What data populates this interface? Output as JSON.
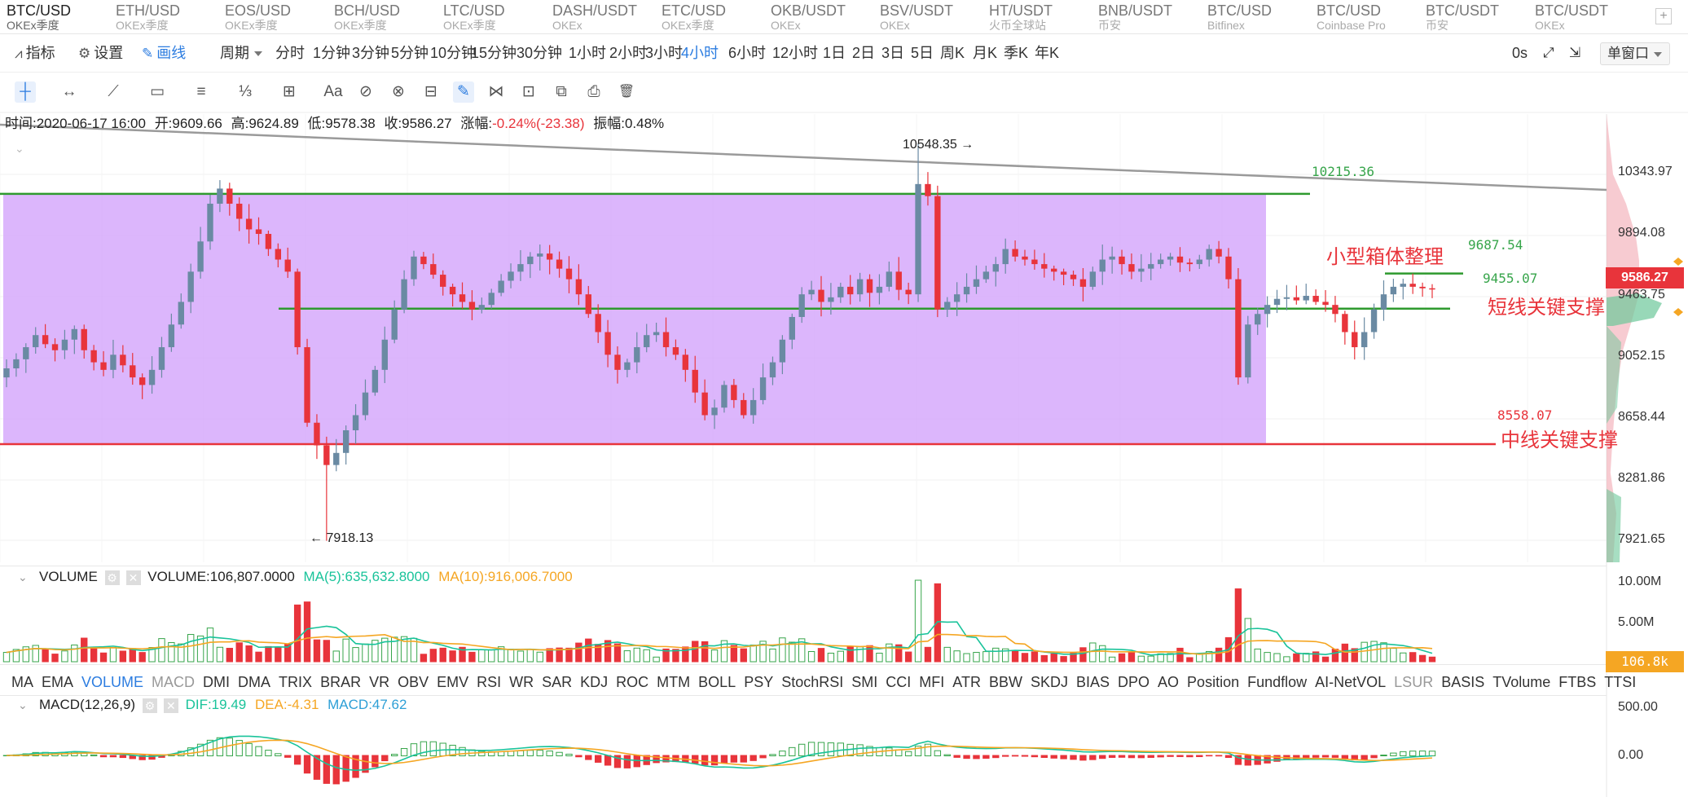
{
  "markets": [
    {
      "symbol": "BTC/USD",
      "exchange": "OKEx季度",
      "active": true
    },
    {
      "symbol": "ETH/USD",
      "exchange": "OKEx季度"
    },
    {
      "symbol": "EOS/USD",
      "exchange": "OKEx季度"
    },
    {
      "symbol": "BCH/USD",
      "exchange": "OKEx季度"
    },
    {
      "symbol": "LTC/USD",
      "exchange": "OKEx季度"
    },
    {
      "symbol": "DASH/USDT",
      "exchange": "OKEx"
    },
    {
      "symbol": "ETC/USD",
      "exchange": "OKEx季度"
    },
    {
      "symbol": "OKB/USDT",
      "exchange": "OKEx"
    },
    {
      "symbol": "BSV/USDT",
      "exchange": "OKEx"
    },
    {
      "symbol": "HT/USDT",
      "exchange": "火币全球站"
    },
    {
      "symbol": "BNB/USDT",
      "exchange": "币安"
    },
    {
      "symbol": "BTC/USD",
      "exchange": "Bitfinex"
    },
    {
      "symbol": "BTC/USD",
      "exchange": "Coinbase Pro"
    },
    {
      "symbol": "BTC/USDT",
      "exchange": "币安"
    },
    {
      "symbol": "BTC/USDT",
      "exchange": "OKEx"
    }
  ],
  "add_tab": "+",
  "toolbar": {
    "indicators": "指标",
    "settings": "设置",
    "drawing": "画线",
    "period": "周期",
    "intervals": [
      "分时",
      "1分钟",
      "3分钟",
      "5分钟",
      "10分钟",
      "15分钟",
      "30分钟",
      "1小时",
      "2小时",
      "3小时",
      "4小时",
      "6小时",
      "12小时",
      "1日",
      "2日",
      "3日",
      "5日",
      "周K",
      "月K",
      "季K",
      "年K"
    ],
    "active_interval": "4小时",
    "countdown": "0s",
    "window_mode": "单窗口"
  },
  "drawing_tools": [
    "crosshair-icon",
    "horizontal-ray-icon",
    "trend-line-icon",
    "rectangle-icon",
    "parallel-channel-icon",
    "fibonacci-icon",
    "measure-icon",
    "text-icon",
    "brush-icon",
    "magnet-icon",
    "ruler-icon",
    "pen-icon",
    "pattern-icon",
    "lock-icon",
    "copy-icon",
    "screenshot-icon",
    "trash-icon"
  ],
  "drawing_tool_glyphs": [
    "┼",
    "↔",
    "⟋",
    "▭",
    "≡",
    "⅓",
    "⊞",
    "Aa",
    "⊘",
    "⊗",
    "⊟",
    "✎",
    "⋈",
    "⊡",
    "⧉",
    "⎙",
    "🗑"
  ],
  "info": {
    "time": "时间:2020-06-17 16:00",
    "open": "开:9609.66",
    "high": "高:9624.89",
    "low": "低:9578.38",
    "close": "收:9586.27",
    "change_label": "涨幅:",
    "change_value": "-0.24%(-23.38)",
    "amplitude": "振幅:0.48%"
  },
  "annotations": {
    "high_mark": "10548.35 →",
    "low_mark": "← 7918.13",
    "level_10215": "10215.36",
    "level_9687": "9687.54",
    "level_9455": "9455.07",
    "level_8558": "8558.07",
    "small_box": "小型箱体整理",
    "short_support": "短线关键支撑",
    "mid_support": "中线关键支撑"
  },
  "price_axis": [
    "10343.97",
    "9894.08",
    "9463.75",
    "9052.15",
    "8658.44",
    "8281.86",
    "7921.65"
  ],
  "last_price": "9586.27",
  "volume": {
    "title": "VOLUME",
    "value": "VOLUME:106,807.0000",
    "ma5": "MA(5):635,632.8000",
    "ma10": "MA(10):916,006.7000",
    "axis": [
      "10.00M",
      "5.00M"
    ],
    "last": "106.8k"
  },
  "indicator_list": [
    "MA",
    "EMA",
    "VOLUME",
    "MACD",
    "DMI",
    "DMA",
    "TRIX",
    "BRAR",
    "VR",
    "OBV",
    "EMV",
    "RSI",
    "WR",
    "SAR",
    "KDJ",
    "ROC",
    "MTM",
    "BOLL",
    "PSY",
    "StochRSI",
    "SMI",
    "CCI",
    "MFI",
    "ATR",
    "BBW",
    "SKDJ",
    "BIAS",
    "DPO",
    "AO",
    "Position",
    "Fundflow",
    "AI-NetVOL",
    "LSUR",
    "BASIS",
    "TVolume",
    "FTBS",
    "TTSI"
  ],
  "macd": {
    "title": "MACD(12,26,9)",
    "dif": "DIF:19.49",
    "dea": "DEA:-4.31",
    "macd": "MACD:47.62",
    "axis": [
      "500.00",
      "0.00"
    ]
  },
  "colors": {
    "up": "#37a54b",
    "down": "#e8343b",
    "box_fill": "#d4a6fb",
    "accent": "#2d7de0",
    "ma5": "#19c39a",
    "ma10": "#f5a623"
  },
  "chart_data": {
    "type": "candlestick",
    "interval": "4小时",
    "last": {
      "time": "2020-06-17 16:00",
      "open": 9609.66,
      "high": 9624.89,
      "low": 9578.38,
      "close": 9586.27
    },
    "series_close": [
      9060,
      9120,
      9200,
      9280,
      9220,
      9180,
      9250,
      9320,
      9180,
      9100,
      9050,
      9150,
      9080,
      9000,
      8950,
      9050,
      9200,
      9350,
      9500,
      9700,
      9900,
      10150,
      10250,
      10150,
      10050,
      9980,
      9950,
      9850,
      9780,
      9700,
      9200,
      8700,
      8550,
      8420,
      8500,
      8650,
      8750,
      8900,
      9050,
      9250,
      9450,
      9650,
      9800,
      9750,
      9680,
      9600,
      9550,
      9500,
      9450,
      9480,
      9560,
      9640,
      9700,
      9750,
      9800,
      9820,
      9780,
      9720,
      9650,
      9550,
      9420,
      9300,
      9150,
      9050,
      9100,
      9200,
      9280,
      9300,
      9200,
      9150,
      9050,
      8900,
      8750,
      8800,
      8950,
      8850,
      8750,
      8850,
      9000,
      9100,
      9250,
      9400,
      9550,
      9580,
      9500,
      9530,
      9600,
      9550,
      9650,
      9560,
      9600,
      9700,
      9580,
      9550,
      10280,
      10200,
      9450,
      9500,
      9550,
      9600,
      9650,
      9700,
      9750,
      9850,
      9800,
      9780,
      9750,
      9720,
      9700,
      9680,
      9650,
      9600,
      9700,
      9780,
      9800,
      9750,
      9700,
      9720,
      9750,
      9780,
      9800,
      9760,
      9750,
      9780,
      9850,
      9800,
      9650,
      9000,
      9350,
      9420,
      9480,
      9520,
      9530,
      9510,
      9540,
      9500,
      9480,
      9420,
      9300,
      9200,
      9300,
      9450,
      9550,
      9600,
      9620,
      9600,
      9590,
      9586
    ]
  }
}
